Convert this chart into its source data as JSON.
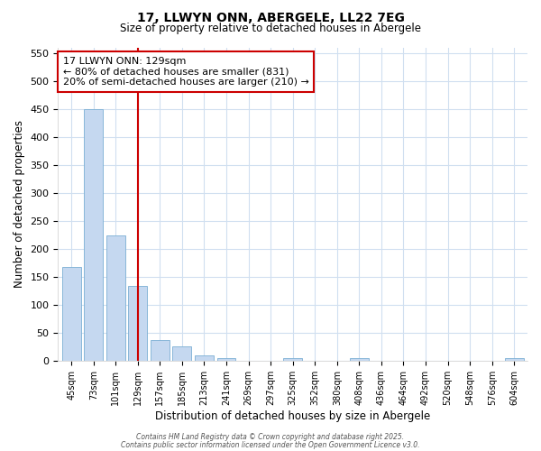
{
  "title": "17, LLWYN ONN, ABERGELE, LL22 7EG",
  "subtitle": "Size of property relative to detached houses in Abergele",
  "xlabel": "Distribution of detached houses by size in Abergele",
  "ylabel": "Number of detached properties",
  "bar_color": "#c5d8f0",
  "bar_edge_color": "#7bafd4",
  "background_color": "#ffffff",
  "grid_color": "#d0dff0",
  "vline_color": "#cc0000",
  "vline_x": 3,
  "annotation_text": "17 LLWYN ONN: 129sqm\n← 80% of detached houses are smaller (831)\n20% of semi-detached houses are larger (210) →",
  "annotation_box_color": "#cc0000",
  "annotation_bg": "#ffffff",
  "categories": [
    "45sqm",
    "73sqm",
    "101sqm",
    "129sqm",
    "157sqm",
    "185sqm",
    "213sqm",
    "241sqm",
    "269sqm",
    "297sqm",
    "325sqm",
    "352sqm",
    "380sqm",
    "408sqm",
    "436sqm",
    "464sqm",
    "492sqm",
    "520sqm",
    "548sqm",
    "576sqm",
    "604sqm"
  ],
  "values": [
    168,
    450,
    224,
    133,
    37,
    26,
    10,
    5,
    0,
    0,
    4,
    0,
    0,
    5,
    0,
    0,
    0,
    0,
    0,
    0,
    4
  ],
  "ylim": [
    0,
    560
  ],
  "yticks": [
    0,
    50,
    100,
    150,
    200,
    250,
    300,
    350,
    400,
    450,
    500,
    550
  ],
  "footer1": "Contains HM Land Registry data © Crown copyright and database right 2025.",
  "footer2": "Contains public sector information licensed under the Open Government Licence v3.0."
}
